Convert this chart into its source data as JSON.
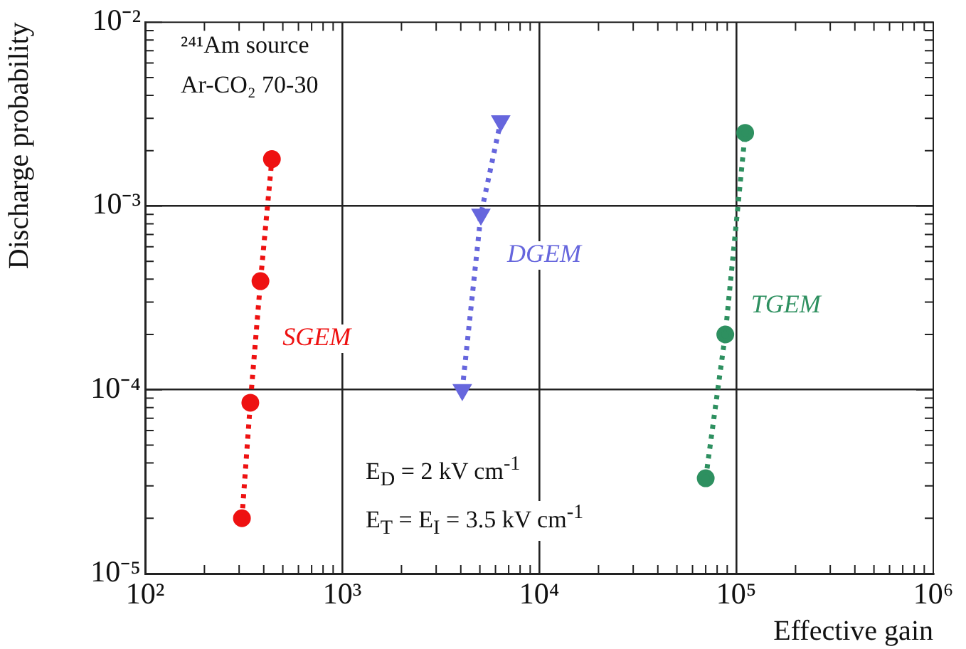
{
  "chart_data": {
    "type": "line",
    "xlabel": "Effective gain",
    "ylabel": "Discharge probability",
    "log": "xy",
    "grid": true,
    "line_style": "dotted",
    "xlim": [
      100,
      1000000
    ],
    "ylim": [
      1e-05,
      0.01
    ],
    "xticks": [
      {
        "value": 100,
        "label": "10²"
      },
      {
        "value": 200,
        "label": null
      },
      {
        "value": 300,
        "label": null
      },
      {
        "value": 400,
        "label": null
      },
      {
        "value": 500,
        "label": null
      },
      {
        "value": 600,
        "label": null
      },
      {
        "value": 700,
        "label": null
      },
      {
        "value": 800,
        "label": null
      },
      {
        "value": 900,
        "label": null
      },
      {
        "value": 1000,
        "label": "10³"
      },
      {
        "value": 2000,
        "label": null
      },
      {
        "value": 3000,
        "label": null
      },
      {
        "value": 4000,
        "label": null
      },
      {
        "value": 5000,
        "label": null
      },
      {
        "value": 6000,
        "label": null
      },
      {
        "value": 7000,
        "label": null
      },
      {
        "value": 8000,
        "label": null
      },
      {
        "value": 9000,
        "label": null
      },
      {
        "value": 10000,
        "label": "10⁴"
      },
      {
        "value": 20000,
        "label": null
      },
      {
        "value": 30000,
        "label": null
      },
      {
        "value": 40000,
        "label": null
      },
      {
        "value": 50000,
        "label": null
      },
      {
        "value": 60000,
        "label": null
      },
      {
        "value": 70000,
        "label": null
      },
      {
        "value": 80000,
        "label": null
      },
      {
        "value": 90000,
        "label": null
      },
      {
        "value": 100000,
        "label": "10⁵"
      },
      {
        "value": 200000,
        "label": null
      },
      {
        "value": 300000,
        "label": null
      },
      {
        "value": 400000,
        "label": null
      },
      {
        "value": 500000,
        "label": null
      },
      {
        "value": 600000,
        "label": null
      },
      {
        "value": 700000,
        "label": null
      },
      {
        "value": 800000,
        "label": null
      },
      {
        "value": 900000,
        "label": null
      },
      {
        "value": 1000000,
        "label": "10⁶"
      }
    ],
    "yticks": [
      {
        "value": 1e-05,
        "label": "10⁻⁵"
      },
      {
        "value": 2e-05,
        "label": null
      },
      {
        "value": 3e-05,
        "label": null
      },
      {
        "value": 4e-05,
        "label": null
      },
      {
        "value": 5e-05,
        "label": null
      },
      {
        "value": 6e-05,
        "label": null
      },
      {
        "value": 7e-05,
        "label": null
      },
      {
        "value": 8e-05,
        "label": null
      },
      {
        "value": 9e-05,
        "label": null
      },
      {
        "value": 0.0001,
        "label": "10⁻⁴"
      },
      {
        "value": 0.0002,
        "label": null
      },
      {
        "value": 0.0003,
        "label": null
      },
      {
        "value": 0.0004,
        "label": null
      },
      {
        "value": 0.0005,
        "label": null
      },
      {
        "value": 0.0006,
        "label": null
      },
      {
        "value": 0.0007,
        "label": null
      },
      {
        "value": 0.0008,
        "label": null
      },
      {
        "value": 0.0009,
        "label": null
      },
      {
        "value": 0.001,
        "label": "10⁻³"
      },
      {
        "value": 0.002,
        "label": null
      },
      {
        "value": 0.003,
        "label": null
      },
      {
        "value": 0.004,
        "label": null
      },
      {
        "value": 0.005,
        "label": null
      },
      {
        "value": 0.006,
        "label": null
      },
      {
        "value": 0.007,
        "label": null
      },
      {
        "value": 0.008,
        "label": null
      },
      {
        "value": 0.009,
        "label": null
      },
      {
        "value": 0.01,
        "label": "10⁻²"
      }
    ],
    "series": [
      {
        "name": "SGEM",
        "color": "#ee1111",
        "marker": "circle",
        "x": [
          310,
          342,
          385,
          440
        ],
        "values": [
          2e-05,
          8.5e-05,
          0.00039,
          0.0018
        ]
      },
      {
        "name": "DGEM",
        "color": "#6666dd",
        "marker": "triangle",
        "x": [
          4070,
          5060,
          6380
        ],
        "values": [
          0.0001,
          0.0009,
          0.0029
        ]
      },
      {
        "name": "TGEM",
        "color": "#2e9060",
        "marker": "circle",
        "x": [
          70000,
          88000,
          111000
        ],
        "values": [
          3.3e-05,
          0.0002,
          0.0025
        ]
      }
    ],
    "annotations": [
      "²⁴¹Am source",
      "Ar-CO₂ 70-30",
      "E$_{D}$ = 2 kV cm$^{-1}$",
      "E$_{T}$ = E$_{I}$ = 3.5 kV cm$^{-1}$"
    ]
  }
}
